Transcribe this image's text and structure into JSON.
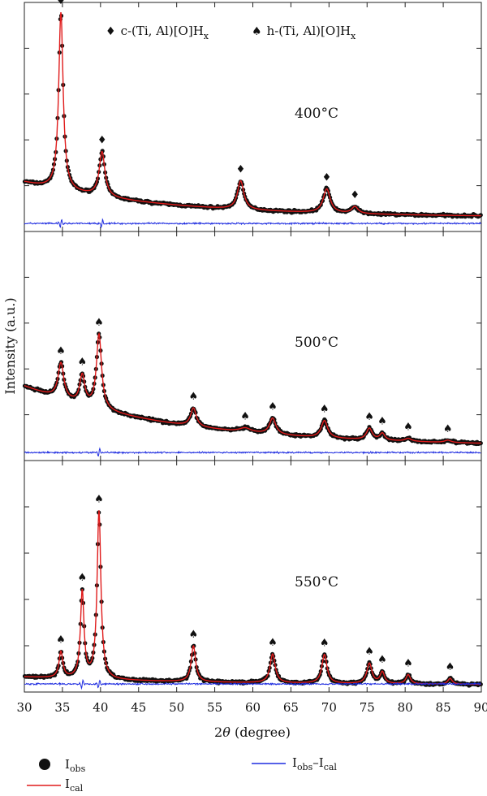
{
  "chart_data": {
    "type": "line",
    "xlabel_prefix": "2",
    "xlabel_symbol": "θ",
    "xlabel_suffix": " (degree)",
    "ylabel": "Intensity (a.u.)",
    "xlim": [
      30,
      90
    ],
    "xticks": [
      "30",
      "35",
      "40",
      "45",
      "50",
      "55",
      "60",
      "65",
      "70",
      "75",
      "80",
      "85",
      "90"
    ],
    "marker_legend": [
      {
        "symbol": "♦",
        "text": "c-(Ti, Al)[O]H",
        "sub": "x"
      },
      {
        "symbol": "♠",
        "text": "h-(Ti, Al)[O]H",
        "sub": "x"
      }
    ],
    "series_legend": [
      {
        "kind": "dot",
        "color": "#111111",
        "main": "I",
        "sub": "obs",
        "main2": "",
        "sub2": ""
      },
      {
        "kind": "line",
        "color": "#e01b1b",
        "main": "I",
        "sub": "cal",
        "main2": "",
        "sub2": ""
      },
      {
        "kind": "line",
        "color": "#1f2de0",
        "main": "I",
        "sub": "obs",
        "main2": "–I",
        "sub2": "cal"
      }
    ],
    "colors": {
      "obs": "#111111",
      "cal": "#e01b1b",
      "diff": "#1f2de0"
    },
    "panels": [
      {
        "label": "400°C",
        "background": {
          "y30": 0.86,
          "y90": 0.25,
          "curv": 3.2
        },
        "peaks": [
          {
            "x": 34.8,
            "h": 3.1,
            "w": 0.35,
            "marker": "♦"
          },
          {
            "x": 40.2,
            "h": 0.78,
            "w": 0.45,
            "marker": "♦"
          },
          {
            "x": 58.4,
            "h": 0.5,
            "w": 0.5,
            "marker": "♦"
          },
          {
            "x": 69.7,
            "h": 0.42,
            "w": 0.55,
            "marker": "♦"
          },
          {
            "x": 73.4,
            "h": 0.12,
            "w": 0.5,
            "marker": "♦"
          }
        ],
        "diff_spikes": [
          34.8,
          40.2
        ]
      },
      {
        "label": "500°C",
        "background": {
          "y30": 1.3,
          "y90": 0.25,
          "curv": 3.0
        },
        "peaks": [
          {
            "x": 34.8,
            "h": 0.62,
            "w": 0.45,
            "marker": "♠"
          },
          {
            "x": 37.6,
            "h": 0.5,
            "w": 0.4,
            "marker": "♠"
          },
          {
            "x": 39.8,
            "h": 1.3,
            "w": 0.4,
            "marker": "♠"
          },
          {
            "x": 52.2,
            "h": 0.32,
            "w": 0.45,
            "marker": "♠"
          },
          {
            "x": 59.0,
            "h": 0.07,
            "w": 0.9,
            "marker": "♠"
          },
          {
            "x": 62.6,
            "h": 0.28,
            "w": 0.5,
            "marker": "♠"
          },
          {
            "x": 69.4,
            "h": 0.3,
            "w": 0.5,
            "marker": "♠"
          },
          {
            "x": 75.3,
            "h": 0.2,
            "w": 0.45,
            "marker": "♠"
          },
          {
            "x": 77.0,
            "h": 0.12,
            "w": 0.4,
            "marker": "♠"
          },
          {
            "x": 80.4,
            "h": 0.05,
            "w": 0.5,
            "marker": "♠"
          },
          {
            "x": 85.6,
            "h": 0.04,
            "w": 0.5,
            "marker": "♠"
          }
        ],
        "diff_spikes": [
          39.8
        ]
      },
      {
        "label": "550°C",
        "background": {
          "y30": 0.26,
          "y90": 0.12,
          "curv": 2.5
        },
        "peaks": [
          {
            "x": 34.8,
            "h": 0.45,
            "w": 0.3,
            "marker": "♠"
          },
          {
            "x": 37.6,
            "h": 1.5,
            "w": 0.28,
            "marker": "♠"
          },
          {
            "x": 39.8,
            "h": 2.9,
            "w": 0.3,
            "marker": "♠"
          },
          {
            "x": 52.2,
            "h": 0.62,
            "w": 0.35,
            "marker": "♠"
          },
          {
            "x": 62.6,
            "h": 0.5,
            "w": 0.4,
            "marker": "♠"
          },
          {
            "x": 69.4,
            "h": 0.5,
            "w": 0.4,
            "marker": "♠"
          },
          {
            "x": 75.3,
            "h": 0.35,
            "w": 0.4,
            "marker": "♠"
          },
          {
            "x": 77.0,
            "h": 0.2,
            "w": 0.35,
            "marker": "♠"
          },
          {
            "x": 80.4,
            "h": 0.16,
            "w": 0.35,
            "marker": "♠"
          },
          {
            "x": 85.9,
            "h": 0.1,
            "w": 0.35,
            "marker": "♠"
          }
        ],
        "diff_spikes": [
          37.6,
          39.8
        ]
      }
    ]
  }
}
